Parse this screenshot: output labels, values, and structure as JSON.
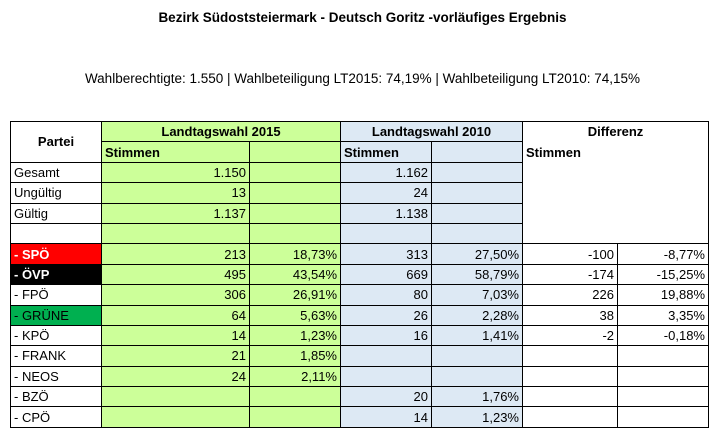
{
  "title": "Bezirk  Südoststeiermark -  Deutsch Goritz -vorläufiges Ergebnis",
  "subtitle": "Wahlberechtigte:  1.550 | Wahlbeteiligung LT2015:  74,19% | Wahlbeteiligung  LT2010:  74,15%",
  "colors": {
    "lt2015": "#ccff99",
    "lt2010": "#dde9f4",
    "spoe": "#ff0000",
    "oevp": "#000000",
    "gruene": "#00b050"
  },
  "headers": {
    "partei": "Partei",
    "lt2015": "Landtagswahl 2015",
    "lt2010": "Landtagswahl 2010",
    "differenz": "Differenz",
    "stimmen": "Stimmen"
  },
  "summary_rows": [
    {
      "label": "Gesamt",
      "v2015": "1.150",
      "v2010": "1.162"
    },
    {
      "label": "Ungültig",
      "v2015": "13",
      "v2010": "24"
    },
    {
      "label": "Gültig",
      "v2015": "1.137",
      "v2010": "1.138"
    }
  ],
  "party_rows": [
    {
      "label": "- SPÖ",
      "s2015": "213",
      "p2015": "18,73%",
      "s2010": "313",
      "p2010": "27,50%",
      "ds": "-100",
      "dp": "-8,77%"
    },
    {
      "label": "- ÖVP",
      "s2015": "495",
      "p2015": "43,54%",
      "s2010": "669",
      "p2010": "58,79%",
      "ds": "-174",
      "dp": "-15,25%"
    },
    {
      "label": "- FPÖ",
      "s2015": "306",
      "p2015": "26,91%",
      "s2010": "80",
      "p2010": "7,03%",
      "ds": "226",
      "dp": "19,88%"
    },
    {
      "label": "- GRÜNE",
      "s2015": "64",
      "p2015": "5,63%",
      "s2010": "26",
      "p2010": "2,28%",
      "ds": "38",
      "dp": "3,35%"
    },
    {
      "label": "- KPÖ",
      "s2015": "14",
      "p2015": "1,23%",
      "s2010": "16",
      "p2010": "1,41%",
      "ds": "-2",
      "dp": "-0,18%"
    },
    {
      "label": "- FRANK",
      "s2015": "21",
      "p2015": "1,85%",
      "s2010": "",
      "p2010": "",
      "ds": "",
      "dp": ""
    },
    {
      "label": "- NEOS",
      "s2015": "24",
      "p2015": "2,11%",
      "s2010": "",
      "p2010": "",
      "ds": "",
      "dp": ""
    },
    {
      "label": "- BZÖ",
      "s2015": "",
      "p2015": "",
      "s2010": "20",
      "p2010": "1,76%",
      "ds": "",
      "dp": ""
    },
    {
      "label": "- CPÖ",
      "s2015": "",
      "p2015": "",
      "s2010": "14",
      "p2010": "1,23%",
      "ds": "",
      "dp": ""
    }
  ]
}
